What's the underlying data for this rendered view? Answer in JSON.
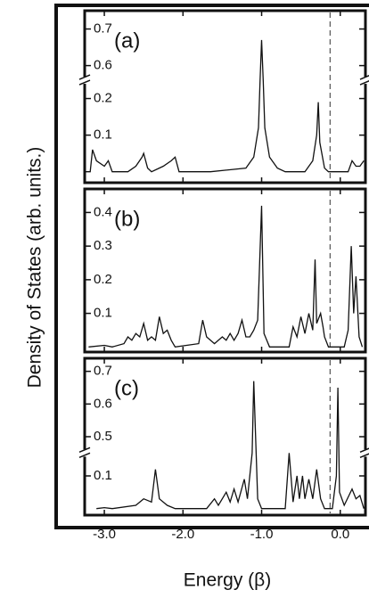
{
  "figure": {
    "ylabel": "Density of States (arb. units.)",
    "xlabel": "Energy (β)"
  },
  "chart_data": [
    {
      "type": "line",
      "title": "(a)",
      "xlim": [
        -3.25,
        0.32
      ],
      "xticks": [
        -3,
        -2,
        -1,
        0
      ],
      "ylim": [
        -0.03,
        0.75
      ],
      "ybreak": [
        0.25,
        0.56
      ],
      "yticks": [
        0.1,
        0.2,
        0.6,
        0.7
      ],
      "vline": -0.13,
      "color": "#111111",
      "x": [
        -3.25,
        -3.18,
        -3.15,
        -3.1,
        -3.0,
        -2.95,
        -2.9,
        -2.7,
        -2.6,
        -2.52,
        -2.5,
        -2.45,
        -2.4,
        -2.25,
        -2.15,
        -2.1,
        -2.05,
        -1.65,
        -1.2,
        -1.1,
        -1.04,
        -1.02,
        -1.0,
        -0.98,
        -0.96,
        -0.9,
        -0.8,
        -0.7,
        -0.45,
        -0.35,
        -0.3,
        -0.28,
        -0.26,
        -0.2,
        -0.15,
        0.1,
        0.15,
        0.2,
        0.25,
        0.3
      ],
      "values": [
        0,
        0,
        0.06,
        0.03,
        0.015,
        0.03,
        0,
        0,
        0.015,
        0.04,
        0.05,
        0.01,
        0,
        0.015,
        0.03,
        0.04,
        0,
        0,
        0.01,
        0.04,
        0.12,
        0.3,
        0.67,
        0.3,
        0.12,
        0.04,
        0.01,
        0,
        0,
        0.03,
        0.1,
        0.19,
        0.08,
        0.01,
        0,
        0,
        0.03,
        0.015,
        0.015,
        0.03
      ]
    },
    {
      "type": "line",
      "title": "(b)",
      "xlim": [
        -3.25,
        0.32
      ],
      "xticks": [
        -3,
        -2,
        -1,
        0
      ],
      "ylim": [
        -0.015,
        0.47
      ],
      "yticks": [
        0.1,
        0.2,
        0.3,
        0.4
      ],
      "vline": -0.13,
      "color": "#111111",
      "x": [
        -3.2,
        -3.0,
        -2.9,
        -2.75,
        -2.7,
        -2.65,
        -2.6,
        -2.55,
        -2.5,
        -2.45,
        -2.4,
        -2.35,
        -2.3,
        -2.25,
        -2.2,
        -2.15,
        -2.1,
        -1.8,
        -1.75,
        -1.7,
        -1.6,
        -1.5,
        -1.45,
        -1.4,
        -1.35,
        -1.3,
        -1.25,
        -1.2,
        -1.15,
        -1.1,
        -1.05,
        -1.0,
        -0.97,
        -0.9,
        -0.65,
        -0.6,
        -0.55,
        -0.5,
        -0.45,
        -0.4,
        -0.35,
        -0.32,
        -0.3,
        -0.25,
        -0.22,
        -0.2,
        -0.15,
        0.05,
        0.1,
        0.14,
        0.17,
        0.2,
        0.24,
        0.28
      ],
      "values": [
        0,
        0.005,
        0,
        0.01,
        0.03,
        0.02,
        0.04,
        0.03,
        0.07,
        0.02,
        0.03,
        0.02,
        0.09,
        0.04,
        0.05,
        0.02,
        0,
        0.01,
        0.08,
        0.03,
        0.01,
        0.03,
        0.02,
        0.04,
        0.02,
        0.04,
        0.08,
        0.03,
        0.03,
        0.05,
        0.08,
        0.42,
        0.04,
        0,
        0,
        0.06,
        0.03,
        0.09,
        0.04,
        0.1,
        0.05,
        0.26,
        0.07,
        0.1,
        0.06,
        0.03,
        0,
        0,
        0.05,
        0.3,
        0.1,
        0.21,
        0.03,
        0
      ]
    },
    {
      "type": "line",
      "title": "(c)",
      "xlim": [
        -3.25,
        0.32
      ],
      "xticks": [
        {
          "value": -3,
          "label": "-3.0"
        },
        {
          "value": -2,
          "label": "-2.0"
        },
        {
          "value": -1,
          "label": "-1.0"
        },
        {
          "value": 0,
          "label": "0.0"
        }
      ],
      "ylim": [
        -0.02,
        0.74
      ],
      "ybreak": [
        0.17,
        0.45
      ],
      "yticks": [
        0.1,
        0.5,
        0.6,
        0.7
      ],
      "vline": -0.13,
      "color": "#111111",
      "x": [
        -3.1,
        -3.0,
        -2.9,
        -2.6,
        -2.5,
        -2.4,
        -2.35,
        -2.3,
        -2.2,
        -2.1,
        -1.7,
        -1.6,
        -1.55,
        -1.45,
        -1.4,
        -1.35,
        -1.3,
        -1.22,
        -1.18,
        -1.12,
        -1.1,
        -1.05,
        -1.0,
        -0.7,
        -0.65,
        -0.6,
        -0.55,
        -0.52,
        -0.48,
        -0.45,
        -0.4,
        -0.35,
        -0.3,
        -0.25,
        -0.2,
        -0.1,
        -0.05,
        -0.03,
        -0.01,
        0.05,
        0.15,
        0.2,
        0.25,
        0.3
      ],
      "values": [
        0,
        0.003,
        0,
        0.01,
        0.03,
        0.02,
        0.12,
        0.03,
        0.01,
        0,
        0,
        0.03,
        0.01,
        0.05,
        0.02,
        0.06,
        0.02,
        0.09,
        0.03,
        0.2,
        0.67,
        0.03,
        0,
        0,
        0.25,
        0.02,
        0.1,
        0.03,
        0.1,
        0.03,
        0.09,
        0.03,
        0.12,
        0.03,
        0,
        0,
        0.1,
        0.65,
        0.05,
        0.01,
        0.06,
        0.03,
        0.04,
        0
      ]
    }
  ]
}
